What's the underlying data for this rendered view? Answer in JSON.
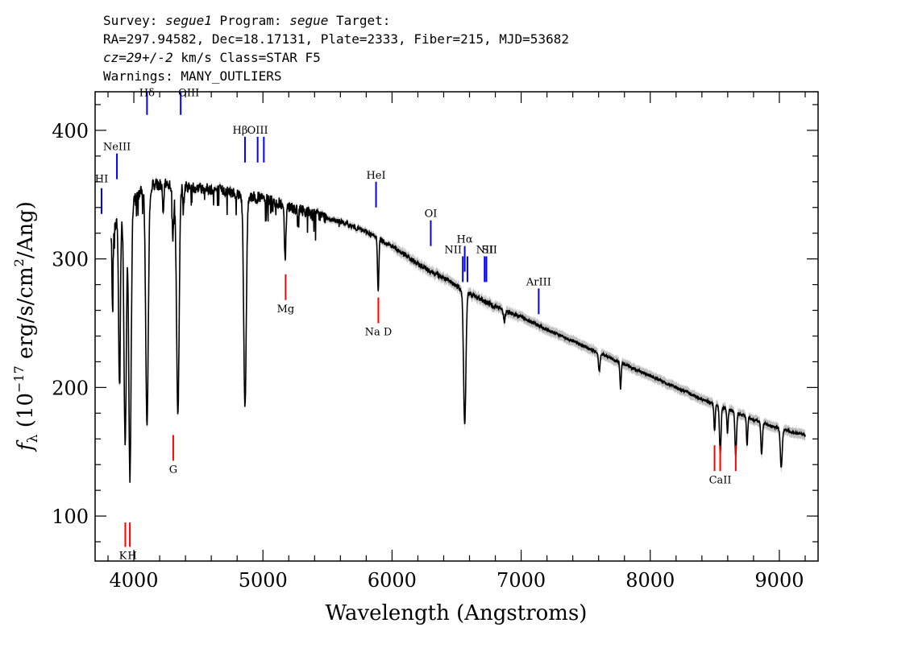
{
  "header": {
    "line1": {
      "a": "Survey: ",
      "b": "segue1",
      "c": " Program: ",
      "d": "segue",
      "e": " Target:"
    },
    "line2": "RA=297.94582, Dec=18.17131, Plate=2333, Fiber=215, MJD=53682",
    "line3": {
      "a": "cz=29+/-2",
      "b": " km/s Class=STAR F5"
    },
    "line4": "Warnings: MANY_OUTLIERS"
  },
  "chart_data": {
    "type": "line",
    "xlabel": "Wavelength (Angstroms)",
    "ylabel": "f_λ (10^-17 erg/s/cm^2/Ang)",
    "ylabel_parts": {
      "f": "f",
      "sub": "λ",
      "pre": " (10",
      "exp": "−17",
      "mid": " erg/s/cm",
      "exp2": "2",
      "post": "/Ang)"
    },
    "xlim": [
      3700,
      9300
    ],
    "ylim": [
      65,
      430
    ],
    "xticks": [
      4000,
      5000,
      6000,
      7000,
      8000,
      9000
    ],
    "yticks": [
      100,
      200,
      300,
      400
    ],
    "colors": {
      "spectrum": "#000000",
      "error": "#b0b0b0",
      "emission": "#0000ff",
      "absorption": "#ff0000"
    },
    "continuum": [
      [
        3820,
        315
      ],
      [
        3870,
        330
      ],
      [
        3950,
        340
      ],
      [
        4050,
        352
      ],
      [
        4150,
        358
      ],
      [
        4250,
        358
      ],
      [
        4400,
        356
      ],
      [
        4550,
        355
      ],
      [
        4700,
        353
      ],
      [
        4850,
        350
      ],
      [
        5000,
        347
      ],
      [
        5200,
        341
      ],
      [
        5400,
        335
      ],
      [
        5600,
        329
      ],
      [
        5800,
        321
      ],
      [
        6000,
        310
      ],
      [
        6200,
        296
      ],
      [
        6400,
        285
      ],
      [
        6600,
        273
      ],
      [
        6800,
        263
      ],
      [
        7000,
        255
      ],
      [
        7200,
        245
      ],
      [
        7400,
        236
      ],
      [
        7600,
        227
      ],
      [
        7800,
        218
      ],
      [
        8000,
        209
      ],
      [
        8200,
        200
      ],
      [
        8400,
        191
      ],
      [
        8600,
        183
      ],
      [
        8800,
        175
      ],
      [
        9000,
        168
      ],
      [
        9200,
        163
      ]
    ],
    "absorption_features": [
      {
        "x": 3835,
        "depth": 55,
        "width": 4
      },
      {
        "x": 3889,
        "depth": 130,
        "width": 7
      },
      {
        "x": 3933,
        "depth": 180,
        "width": 9
      },
      {
        "x": 3970,
        "depth": 215,
        "width": 9
      },
      {
        "x": 4102,
        "depth": 185,
        "width": 10
      },
      {
        "x": 4227,
        "depth": 25,
        "width": 5
      },
      {
        "x": 4303,
        "depth": 40,
        "width": 6
      },
      {
        "x": 4341,
        "depth": 180,
        "width": 10
      },
      {
        "x": 4383,
        "depth": 18,
        "width": 4
      },
      {
        "x": 4861,
        "depth": 165,
        "width": 10
      },
      {
        "x": 5172,
        "depth": 40,
        "width": 6
      },
      {
        "x": 5270,
        "depth": 14,
        "width": 4
      },
      {
        "x": 5890,
        "depth": 28,
        "width": 4
      },
      {
        "x": 5896,
        "depth": 24,
        "width": 4
      },
      {
        "x": 6563,
        "depth": 105,
        "width": 9
      },
      {
        "x": 6870,
        "depth": 10,
        "width": 6
      },
      {
        "x": 7605,
        "depth": 14,
        "width": 6
      },
      {
        "x": 7770,
        "depth": 20,
        "width": 5
      },
      {
        "x": 8498,
        "depth": 22,
        "width": 5
      },
      {
        "x": 8542,
        "depth": 38,
        "width": 6
      },
      {
        "x": 8598,
        "depth": 18,
        "width": 5
      },
      {
        "x": 8662,
        "depth": 34,
        "width": 6
      },
      {
        "x": 8750,
        "depth": 22,
        "width": 5
      },
      {
        "x": 8863,
        "depth": 25,
        "width": 6
      },
      {
        "x": 9015,
        "depth": 30,
        "width": 7
      }
    ],
    "emission_lines": [
      {
        "label": "HI",
        "x": 3750,
        "y0": 335,
        "y1": 355,
        "label_y": 362,
        "label_dx": 0
      },
      {
        "label": "NeIII",
        "x": 3869,
        "y0": 362,
        "y1": 382,
        "label_y": 387,
        "label_dx": 0
      },
      {
        "label": "Hδ",
        "x": 4102,
        "y0": 412,
        "y1": 432,
        "label_y": 429,
        "label_dx": 0
      },
      {
        "label": "OIII",
        "x": 4363,
        "y0": 412,
        "y1": 432,
        "label_y": 429,
        "label_dx": 10
      },
      {
        "label": "Hβ",
        "x": 4861,
        "y0": 375,
        "y1": 395,
        "label_y": 400,
        "label_dx": -6
      },
      {
        "label": "OIII",
        "x": 4959,
        "y0": 375,
        "y1": 395,
        "label_y": 400,
        "label_dx": 0
      },
      {
        "label": "",
        "x": 5007,
        "y0": 375,
        "y1": 395,
        "label_y": 400,
        "label_dx": 0
      },
      {
        "label": "HeI",
        "x": 5876,
        "y0": 340,
        "y1": 360,
        "label_y": 365,
        "label_dx": 0
      },
      {
        "label": "OI",
        "x": 6300,
        "y0": 310,
        "y1": 330,
        "label_y": 335,
        "label_dx": 0
      },
      {
        "label": "NII",
        "x": 6548,
        "y0": 282,
        "y1": 302,
        "label_y": 307,
        "label_dx": -12
      },
      {
        "label": "Hα",
        "x": 6563,
        "y0": 290,
        "y1": 310,
        "label_y": 315,
        "label_dx": 0
      },
      {
        "label": "",
        "x": 6584,
        "y0": 282,
        "y1": 302,
        "label_y": 307,
        "label_dx": 0
      },
      {
        "label": "SII",
        "x": 6717,
        "y0": 282,
        "y1": 302,
        "label_y": 307,
        "label_dx": 6
      },
      {
        "label": "NII",
        "x": 6731,
        "y0": 282,
        "y1": 302,
        "label_y": 307,
        "label_dx": -2
      },
      {
        "label": "ArIII",
        "x": 7136,
        "y0": 257,
        "y1": 277,
        "label_y": 282,
        "label_dx": 0
      }
    ],
    "absorption_lines": [
      {
        "label": "K",
        "x": 3934,
        "y0": 76,
        "y1": 95,
        "label_y": 69,
        "label_dx": -3
      },
      {
        "label": "H",
        "x": 3969,
        "y0": 76,
        "y1": 95,
        "label_y": 69,
        "label_dx": 3
      },
      {
        "label": "G",
        "x": 4305,
        "y0": 143,
        "y1": 163,
        "label_y": 136,
        "label_dx": 0
      },
      {
        "label": "Mg",
        "x": 5176,
        "y0": 268,
        "y1": 288,
        "label_y": 261,
        "label_dx": 0
      },
      {
        "label": "Na  D",
        "x": 5894,
        "y0": 250,
        "y1": 270,
        "label_y": 243,
        "label_dx": 0
      },
      {
        "label": "",
        "x": 8498,
        "y0": 135,
        "y1": 155,
        "label_y": 128,
        "label_dx": 0
      },
      {
        "label": "CaII",
        "x": 8542,
        "y0": 135,
        "y1": 155,
        "label_y": 128,
        "label_dx": 0
      },
      {
        "label": "",
        "x": 8662,
        "y0": 135,
        "y1": 155,
        "label_y": 128,
        "label_dx": 0
      }
    ]
  }
}
